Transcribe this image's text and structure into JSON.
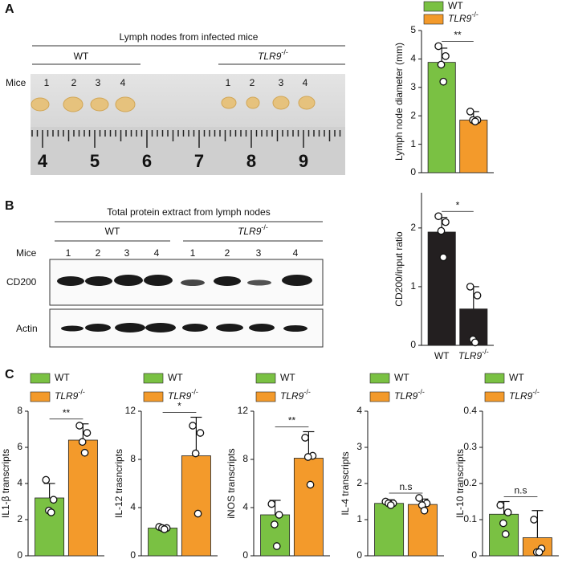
{
  "figure": {
    "panel_labels": [
      "A",
      "B",
      "C"
    ],
    "panel_a": {
      "title": "Lymph nodes from infected mice",
      "groups": [
        {
          "name": "WT"
        },
        {
          "name": "TLR9",
          "superscript": "-/-"
        }
      ],
      "mice_label": "Mice",
      "mice": [
        "1",
        "2",
        "3",
        "4"
      ],
      "ruler": [
        "4",
        "5",
        "6",
        "7",
        "8",
        "9"
      ]
    },
    "panel_b": {
      "title": "Total protein extract from lymph nodes",
      "groups": [
        {
          "name": "WT"
        },
        {
          "name": "TLR9",
          "superscript": "-/-"
        }
      ],
      "mice_label": "Mice",
      "mice": [
        "1",
        "2",
        "3",
        "4"
      ],
      "rows": [
        "CD200",
        "Actin"
      ]
    }
  },
  "chart_data": [
    {
      "type": "bar",
      "ylabel": "Lymph node diameter (mm)",
      "ylim": [
        0,
        5
      ],
      "yticks": [
        0,
        1,
        2,
        3,
        4,
        5
      ],
      "legend": true,
      "significance": "**",
      "series": [
        {
          "name": "WT",
          "color": "#7ac143",
          "values": [
            3.88
          ],
          "errors": [
            0.5
          ],
          "points": [
            4.45,
            4.1,
            3.8,
            3.2
          ]
        },
        {
          "name": "TLR9",
          "superscript": "-/-",
          "color": "#f39a2b",
          "values": [
            1.85
          ],
          "errors": [
            0.3
          ],
          "points": [
            2.15,
            1.85,
            1.85,
            1.8
          ]
        }
      ]
    },
    {
      "type": "bar",
      "ylabel": "CD200/input ratio",
      "ylim": [
        0,
        2.6
      ],
      "yticks": [
        0,
        1,
        2
      ],
      "legend": false,
      "significance": "*",
      "series": [
        {
          "name": "WT",
          "color": "#231f20",
          "values": [
            1.93
          ],
          "errors": [
            0.25
          ],
          "points": [
            2.2,
            2.1,
            1.95,
            1.5
          ]
        },
        {
          "name": "TLR9",
          "superscript": "-/-",
          "color": "#231f20",
          "values": [
            0.62
          ],
          "errors": [
            0.38
          ],
          "points": [
            1.0,
            0.85,
            0.1,
            0.05
          ]
        }
      ]
    },
    {
      "type": "bar",
      "ylabel": "IL1-β transcripts",
      "ylim": [
        0,
        8
      ],
      "yticks": [
        0,
        2,
        4,
        6,
        8
      ],
      "legend": true,
      "significance": "**",
      "series": [
        {
          "name": "WT",
          "color": "#7ac143",
          "values": [
            3.2
          ],
          "errors": [
            0.8
          ],
          "points": [
            4.2,
            3.1,
            2.5,
            2.4
          ]
        },
        {
          "name": "TLR9",
          "superscript": "-/-",
          "color": "#f39a2b",
          "values": [
            6.4
          ],
          "errors": [
            0.9
          ],
          "points": [
            7.2,
            6.8,
            6.3,
            5.7
          ]
        }
      ]
    },
    {
      "type": "bar",
      "ylabel": "IL-12 trasncripts",
      "ylim": [
        0,
        12
      ],
      "yticks": [
        0,
        4,
        8,
        12
      ],
      "legend": true,
      "significance": "*",
      "series": [
        {
          "name": "WT",
          "color": "#7ac143",
          "values": [
            2.3
          ],
          "errors": [
            0.2
          ],
          "points": [
            2.4,
            2.3,
            2.3,
            2.2
          ]
        },
        {
          "name": "TLR9",
          "superscript": "-/-",
          "color": "#f39a2b",
          "values": [
            8.3
          ],
          "errors": [
            3.2
          ],
          "points": [
            10.8,
            10.2,
            8.5,
            3.5
          ]
        }
      ]
    },
    {
      "type": "bar",
      "ylabel": "iNOS transcripts",
      "ylim": [
        0,
        12
      ],
      "yticks": [
        0,
        4,
        8,
        12
      ],
      "legend": true,
      "significance": "**",
      "series": [
        {
          "name": "WT",
          "color": "#7ac143",
          "values": [
            3.4
          ],
          "errors": [
            1.2
          ],
          "points": [
            4.3,
            3.4,
            2.6,
            0.8
          ]
        },
        {
          "name": "TLR9",
          "superscript": "-/-",
          "color": "#f39a2b",
          "values": [
            8.1
          ],
          "errors": [
            2.2
          ],
          "points": [
            9.8,
            8.3,
            8.2,
            5.9
          ]
        }
      ]
    },
    {
      "type": "bar",
      "ylabel": "IL-4 transcripts",
      "ylim": [
        0,
        4
      ],
      "yticks": [
        0,
        1,
        2,
        3,
        4
      ],
      "legend": true,
      "significance": "n.s",
      "series": [
        {
          "name": "WT",
          "color": "#7ac143",
          "values": [
            1.45
          ],
          "errors": [
            0.1
          ],
          "points": [
            1.5,
            1.45,
            1.45,
            1.4
          ]
        },
        {
          "name": "TLR9",
          "superscript": "-/-",
          "color": "#f39a2b",
          "values": [
            1.42
          ],
          "errors": [
            0.15
          ],
          "points": [
            1.6,
            1.45,
            1.4,
            1.25
          ]
        }
      ]
    },
    {
      "type": "bar",
      "ylabel": "IL-10 transcripts",
      "ylim": [
        0,
        0.4
      ],
      "yticks": [
        0,
        0.1,
        0.2,
        0.3,
        0.4
      ],
      "legend": true,
      "significance": "n.s",
      "series": [
        {
          "name": "WT",
          "color": "#7ac143",
          "values": [
            0.115
          ],
          "errors": [
            0.035
          ],
          "points": [
            0.14,
            0.12,
            0.09,
            0.06
          ]
        },
        {
          "name": "TLR9",
          "superscript": "-/-",
          "color": "#f39a2b",
          "values": [
            0.05
          ],
          "errors": [
            0.075
          ],
          "points": [
            0.1,
            0.02,
            0.01,
            0.01
          ]
        }
      ]
    }
  ]
}
